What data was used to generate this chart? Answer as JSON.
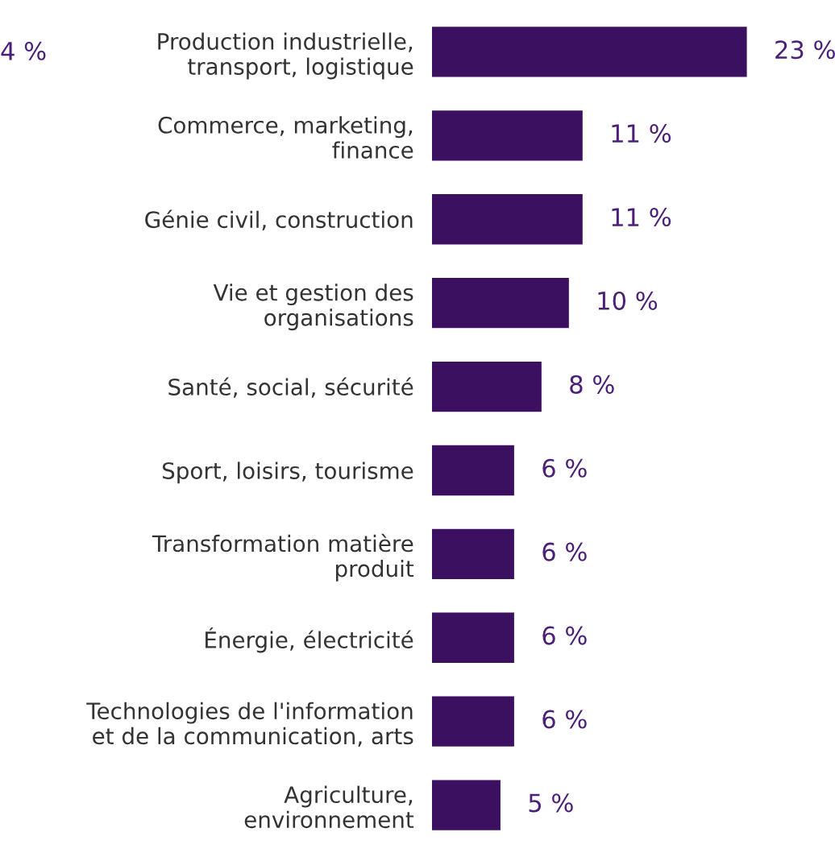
{
  "chart_data": {
    "type": "bar",
    "orientation": "horizontal",
    "categories": [
      "Production industrielle,\ntransport, logistique",
      "Commerce, marketing,\nfinance",
      "Génie civil, construction",
      "Vie et gestion des\norganisations",
      "Santé, social, sécurité",
      "Sport, loisirs, tourisme",
      "Transformation matière\nproduit",
      "Énergie, électricité",
      "Technologies de l'information\net de la communication, arts",
      "Agriculture,\nenvironnement"
    ],
    "values": [
      23,
      11,
      11,
      10,
      8,
      6,
      6,
      6,
      6,
      5
    ],
    "value_labels": [
      "23 %",
      "11 %",
      "11 %",
      "10 %",
      "8 %",
      "6 %",
      "6 %",
      "6 %",
      "6 %",
      "5 %"
    ],
    "color": "#3c1060",
    "grid": false,
    "legend": false,
    "annotations": [
      "4 %"
    ]
  }
}
